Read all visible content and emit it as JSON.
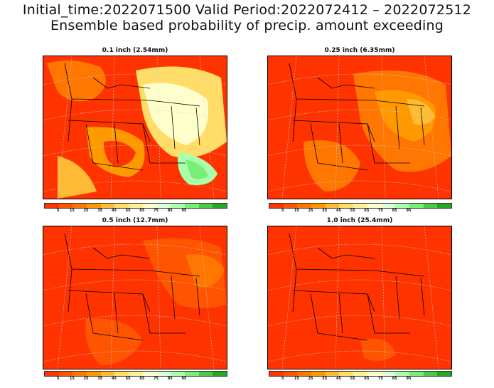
{
  "title": {
    "line1": "Initial_time:2022071500   Valid Period:2022072412 – 2022072512",
    "line2": "Ensemble based probability of precip. amount exceeding"
  },
  "panels": [
    {
      "label": "0.1 inch (2.54mm)",
      "base_color": "#ff3300"
    },
    {
      "label": "0.25 inch (6.35mm)",
      "base_color": "#ff3300"
    },
    {
      "label": "0.5 inch (12.7mm)",
      "base_color": "#ff3300"
    },
    {
      "label": "1.0 inch (25.4mm)",
      "base_color": "#ff3300"
    }
  ],
  "colorbar": {
    "colors": [
      "#ff3300",
      "#ff5500",
      "#ff7700",
      "#ff9900",
      "#ffbb33",
      "#ffdd66",
      "#ffee99",
      "#ffffcc",
      "#ddffdd",
      "#aaffaa",
      "#77ee77",
      "#44cc44",
      "#22aa22"
    ],
    "ticks": [
      "5",
      "15",
      "25",
      "35",
      "45",
      "55",
      "65",
      "75",
      "85",
      "95"
    ]
  }
}
